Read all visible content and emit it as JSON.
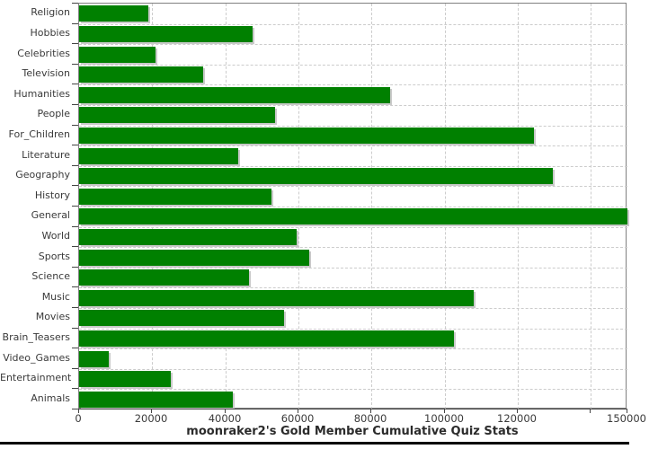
{
  "chart_data": {
    "type": "bar",
    "orientation": "horizontal",
    "title": "moonraker2's Gold Member Cumulative Quiz Stats",
    "categories": [
      "Religion",
      "Hobbies",
      "Celebrities",
      "Television",
      "Humanities",
      "People",
      "For_Children",
      "Literature",
      "Geography",
      "History",
      "General",
      "World",
      "Sports",
      "Science",
      "Music",
      "Movies",
      "Brain_Teasers",
      "Video_Games",
      "Entertainment",
      "Animals"
    ],
    "values": [
      19000,
      47500,
      21000,
      34000,
      85000,
      53500,
      124500,
      43500,
      129500,
      52500,
      151000,
      59500,
      63000,
      46500,
      108000,
      56000,
      102500,
      8000,
      25000,
      42000
    ],
    "xlim": [
      0,
      150000
    ],
    "xticks": [
      {
        "value": 0,
        "label": "0"
      },
      {
        "value": 20000,
        "label": "20000"
      },
      {
        "value": 40000,
        "label": "40000"
      },
      {
        "value": 60000,
        "label": "60000"
      },
      {
        "value": 80000,
        "label": "80000"
      },
      {
        "value": 100000,
        "label": "100000"
      },
      {
        "value": 120000,
        "label": "120000"
      },
      {
        "value": 140000,
        "label": ""
      },
      {
        "value": 150000,
        "label": "150000"
      }
    ],
    "grid": "dashed",
    "legend": "none",
    "xlabel": "",
    "ylabel": "",
    "colors": {
      "bar": "#008000",
      "bar_shadow": "#c9c9c9",
      "grid": "#cccccc",
      "plot_border": "#808080",
      "axis": "#444444",
      "label": "#3a3a3a",
      "background": "#ffffff",
      "bottom_bar": "#000000"
    }
  }
}
